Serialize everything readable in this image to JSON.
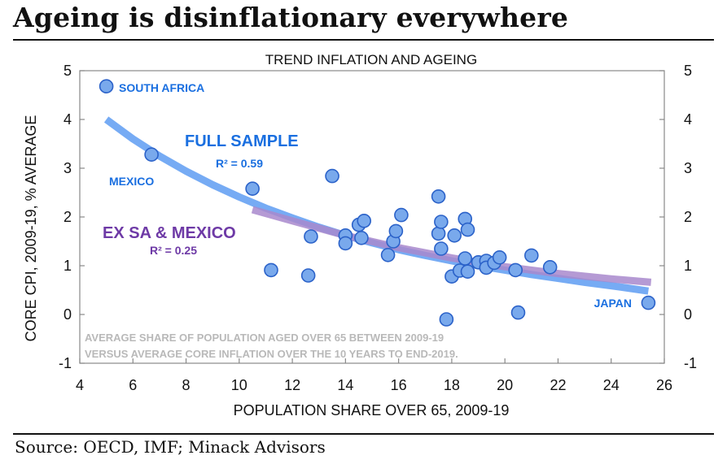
{
  "headline": "Ageing is disinflationary everywhere",
  "source": "Source: OECD, IMF; Minack Advisors",
  "colors": {
    "point_fill": "#79a9ec",
    "point_stroke": "#2b62c9",
    "full_trend": "#6aa4f3",
    "ex_trend": "#a888cc",
    "full_label": "#1a6fe0",
    "ex_label": "#6e3aa6",
    "note": "#b9b9b9",
    "axis": "#888888"
  },
  "chart_data": {
    "type": "scatter",
    "title": "TREND INFLATION AND AGEING",
    "xlabel": "POPULATION SHARE OVER 65, 2009-19",
    "ylabel": "CORE CPI, 2009-19, % AVERAGE",
    "xlim": [
      4,
      26
    ],
    "ylim": [
      -1,
      5
    ],
    "xticks": [
      4,
      6,
      8,
      10,
      12,
      14,
      16,
      18,
      20,
      22,
      24,
      26
    ],
    "yticks": [
      -1,
      0,
      1,
      2,
      3,
      4,
      5
    ],
    "grid": false,
    "note_lines": [
      "AVERAGE SHARE OF POPULATION AGED OVER 65 BETWEEN 2009-19",
      "VERSUS AVERAGE CORE INFLATION OVER THE 10 YEARS TO END-2019."
    ],
    "points": [
      {
        "x": 5.0,
        "y": 4.68,
        "label": "SOUTH AFRICA"
      },
      {
        "x": 6.7,
        "y": 3.28,
        "label": "MEXICO"
      },
      {
        "x": 10.5,
        "y": 2.58
      },
      {
        "x": 11.2,
        "y": 0.91
      },
      {
        "x": 12.6,
        "y": 0.8
      },
      {
        "x": 12.7,
        "y": 1.6
      },
      {
        "x": 13.5,
        "y": 2.84
      },
      {
        "x": 14.0,
        "y": 1.62
      },
      {
        "x": 14.0,
        "y": 1.46
      },
      {
        "x": 14.5,
        "y": 1.84
      },
      {
        "x": 14.7,
        "y": 1.92
      },
      {
        "x": 14.6,
        "y": 1.57
      },
      {
        "x": 15.6,
        "y": 1.22
      },
      {
        "x": 15.8,
        "y": 1.5
      },
      {
        "x": 15.9,
        "y": 1.71
      },
      {
        "x": 16.1,
        "y": 2.04
      },
      {
        "x": 17.5,
        "y": 2.42
      },
      {
        "x": 17.5,
        "y": 1.66
      },
      {
        "x": 17.6,
        "y": 1.9
      },
      {
        "x": 17.6,
        "y": 1.35
      },
      {
        "x": 17.8,
        "y": -0.1
      },
      {
        "x": 18.1,
        "y": 1.62
      },
      {
        "x": 18.0,
        "y": 0.78
      },
      {
        "x": 18.3,
        "y": 0.9
      },
      {
        "x": 18.5,
        "y": 1.96
      },
      {
        "x": 18.5,
        "y": 1.15
      },
      {
        "x": 18.6,
        "y": 1.74
      },
      {
        "x": 18.6,
        "y": 0.88
      },
      {
        "x": 19.0,
        "y": 1.07
      },
      {
        "x": 19.3,
        "y": 1.1
      },
      {
        "x": 19.3,
        "y": 0.96
      },
      {
        "x": 19.6,
        "y": 1.06
      },
      {
        "x": 19.8,
        "y": 1.17
      },
      {
        "x": 20.4,
        "y": 0.91
      },
      {
        "x": 20.5,
        "y": 0.04
      },
      {
        "x": 21.0,
        "y": 1.21
      },
      {
        "x": 21.7,
        "y": 0.97
      },
      {
        "x": 25.4,
        "y": 0.24,
        "label": "JAPAN"
      }
    ],
    "series": [
      {
        "name": "FULL SAMPLE",
        "r2_label": "R² = 0.59",
        "type": "line",
        "x": [
          5.0,
          6.0,
          7.0,
          8.0,
          9.0,
          10.0,
          11.0,
          12.0,
          13.0,
          14.0,
          15.0,
          16.0,
          17.0,
          18.0,
          19.0,
          20.0,
          21.0,
          22.0,
          23.0,
          24.0,
          25.4
        ],
        "values": [
          4.0,
          3.6,
          3.25,
          2.94,
          2.66,
          2.41,
          2.18,
          1.98,
          1.79,
          1.62,
          1.47,
          1.33,
          1.21,
          1.1,
          1.0,
          0.91,
          0.82,
          0.74,
          0.66,
          0.59,
          0.48
        ]
      },
      {
        "name": "EX SA & MEXICO",
        "r2_label": "R² = 0.25",
        "type": "line",
        "x": [
          10.5,
          12.0,
          14.0,
          16.0,
          18.0,
          20.0,
          22.0,
          24.0,
          25.5
        ],
        "values": [
          2.15,
          1.92,
          1.62,
          1.37,
          1.16,
          0.98,
          0.84,
          0.73,
          0.66
        ]
      }
    ]
  }
}
